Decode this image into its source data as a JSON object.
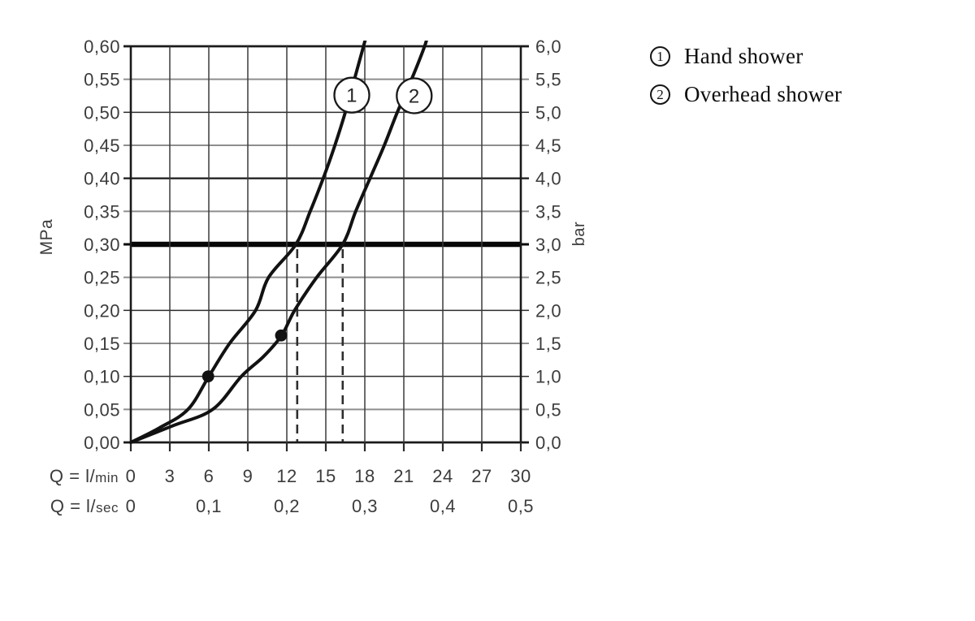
{
  "page": {
    "background": "#ffffff"
  },
  "legend": {
    "items": [
      {
        "marker": "1",
        "label": "Hand shower"
      },
      {
        "marker": "2",
        "label": "Overhead shower"
      }
    ]
  },
  "colors": {
    "curve": "#121212",
    "grid_major": "#2c2c2c",
    "grid_minor": "#8e8e8e",
    "grid_border": "#1a1a1a",
    "reference_line": "#070707",
    "tick_text": "#3c3c3c",
    "dashed_guide": "#2e2e2e"
  },
  "chart_data": {
    "type": "line",
    "left_axis": {
      "unit": "MPa",
      "min": 0,
      "max": 0.6,
      "step": 0.05,
      "tick_labels": [
        "0,60",
        "0,55",
        "0,50",
        "0,45",
        "0,40",
        "0,35",
        "0,30",
        "0,25",
        "0,20",
        "0,15",
        "0,10",
        "0,05",
        "0,00"
      ]
    },
    "right_axis": {
      "unit": "bar",
      "min": 0,
      "max": 6,
      "step": 0.5,
      "tick_labels": [
        "6,0",
        "5,5",
        "5,0",
        "4,5",
        "4,0",
        "3,5",
        "3,0",
        "2,5",
        "2,0",
        "1,5",
        "1,0",
        "0,5",
        "0,0"
      ]
    },
    "x_axis": {
      "min": 0,
      "max": 30,
      "rows": [
        {
          "prefix": "Q = l/",
          "unit": "min",
          "ticks": [
            {
              "label": "0",
              "lmin": 0
            },
            {
              "label": "3",
              "lmin": 3
            },
            {
              "label": "6",
              "lmin": 6
            },
            {
              "label": "9",
              "lmin": 9
            },
            {
              "label": "12",
              "lmin": 12
            },
            {
              "label": "15",
              "lmin": 15
            },
            {
              "label": "18",
              "lmin": 18
            },
            {
              "label": "21",
              "lmin": 21
            },
            {
              "label": "24",
              "lmin": 24
            },
            {
              "label": "27",
              "lmin": 27
            },
            {
              "label": "30",
              "lmin": 30
            }
          ]
        },
        {
          "prefix": "Q = l/",
          "unit": "sec",
          "ticks": [
            {
              "label": "0",
              "lmin": 0
            },
            {
              "label": "0,1",
              "lmin": 6
            },
            {
              "label": "0,2",
              "lmin": 12
            },
            {
              "label": "0,3",
              "lmin": 18
            },
            {
              "label": "0,4",
              "lmin": 24
            },
            {
              "label": "0,5",
              "lmin": 30
            }
          ]
        }
      ]
    },
    "reference_line": {
      "bar": 3.0
    },
    "dashed_guides_lmin": [
      12.8,
      16.3
    ],
    "series": [
      {
        "marker": "1",
        "name": "Hand shower",
        "points_lmin_bar": [
          [
            0,
            0
          ],
          [
            2.2,
            0.22
          ],
          [
            4.4,
            0.5
          ],
          [
            6,
            1.0
          ],
          [
            7.6,
            1.5
          ],
          [
            9.6,
            2.0
          ],
          [
            10.6,
            2.5
          ],
          [
            12.7,
            3.0
          ],
          [
            13.8,
            3.5
          ],
          [
            14.8,
            4.0
          ],
          [
            15.7,
            4.5
          ],
          [
            16.5,
            5.0
          ],
          [
            17.2,
            5.5
          ],
          [
            17.9,
            6.0
          ],
          [
            18.15,
            6.18
          ]
        ],
        "marker_at": {
          "lmin": 17.0,
          "bar": 5.26
        },
        "dot": {
          "lmin": 5.95,
          "bar": 1.0
        }
      },
      {
        "marker": "2",
        "name": "Overhead shower",
        "points_lmin_bar": [
          [
            0,
            0
          ],
          [
            3.2,
            0.25
          ],
          [
            6.3,
            0.5
          ],
          [
            8.5,
            1.0
          ],
          [
            10.2,
            1.3
          ],
          [
            11.6,
            1.62
          ],
          [
            12.6,
            2.0
          ],
          [
            14.3,
            2.5
          ],
          [
            16.3,
            3.0
          ],
          [
            17.3,
            3.5
          ],
          [
            18.4,
            4.0
          ],
          [
            19.5,
            4.5
          ],
          [
            20.5,
            5.0
          ],
          [
            21.6,
            5.5
          ],
          [
            22.6,
            6.0
          ],
          [
            22.85,
            6.18
          ]
        ],
        "marker_at": {
          "lmin": 21.8,
          "bar": 5.25
        },
        "dot": {
          "lmin": 11.56,
          "bar": 1.62
        }
      }
    ]
  }
}
